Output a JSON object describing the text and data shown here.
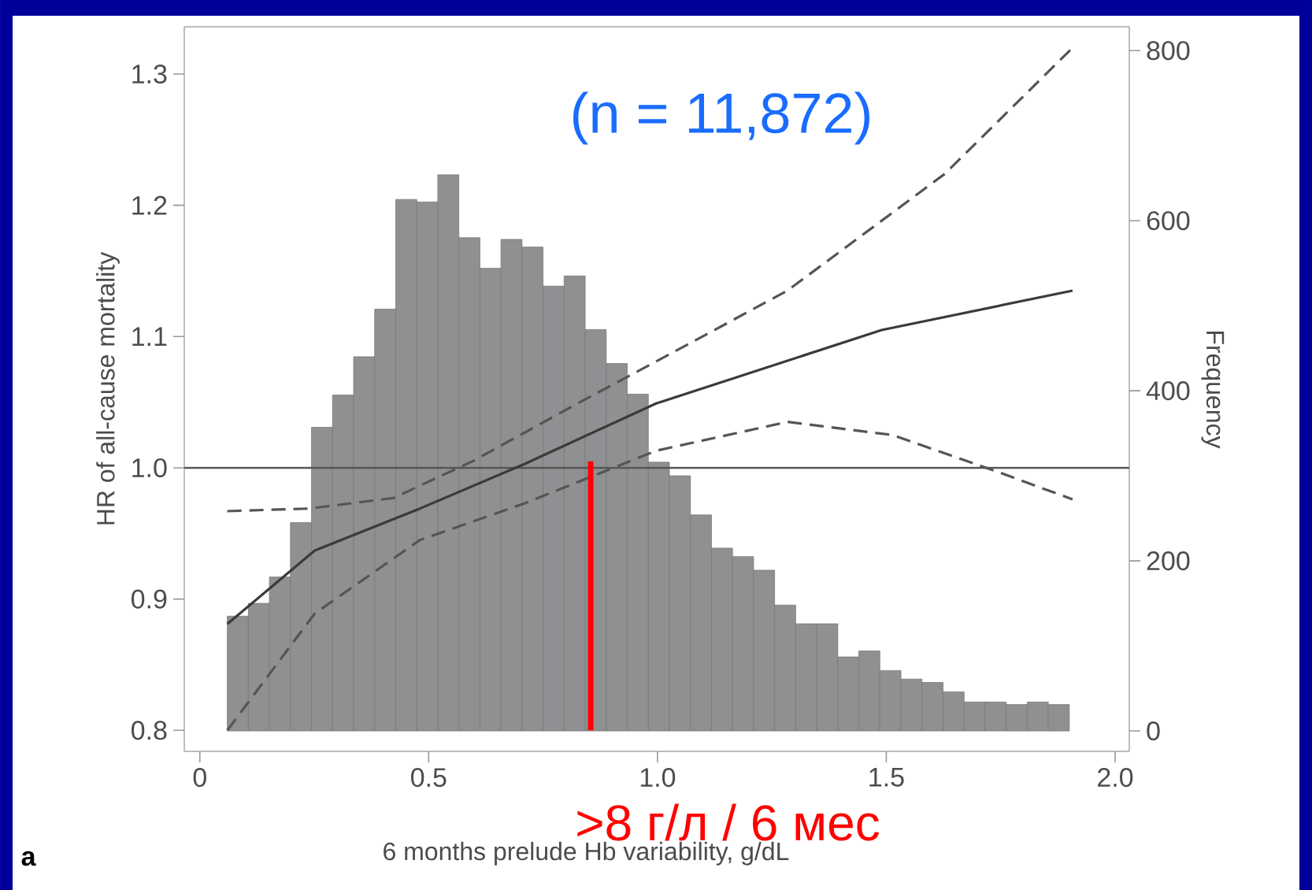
{
  "chart_data": {
    "type": "line",
    "xlabel": "6 months prelude Hb variability, g/dL",
    "ylabel": "HR of all-cause mortality",
    "y2label": "Frequency",
    "xlim": [
      -0.034,
      2.031
    ],
    "ylim": [
      0.784,
      1.336
    ],
    "y2lim": [
      -24,
      828
    ],
    "xticks": [
      0,
      0.5,
      {
        "value": 1,
        "label": "1.0"
      },
      1.5,
      {
        "value": 2,
        "label": "2.0"
      }
    ],
    "yticks": [
      0.8,
      0.9,
      {
        "value": 1,
        "label": "1.0"
      },
      1.1,
      1.2,
      1.3
    ],
    "y2ticks": [
      0,
      200,
      400,
      600,
      800
    ],
    "series": [
      {
        "type": "histogram",
        "axis": "y2",
        "color": "#8f9092",
        "bins": [
          0.06,
          0.106,
          0.152,
          0.198,
          0.244,
          0.29,
          0.336,
          0.382,
          0.428,
          0.474,
          0.52,
          0.566,
          0.612,
          0.658,
          0.704,
          0.75,
          0.796,
          0.842,
          0.888,
          0.934,
          0.98,
          1.026,
          1.072,
          1.118,
          1.164,
          1.21,
          1.256,
          1.302,
          1.348,
          1.394,
          1.44,
          1.486,
          1.532,
          1.578,
          1.624,
          1.67,
          1.716,
          1.762,
          1.808,
          1.854,
          1.9
        ],
        "values": [
          135,
          150,
          181,
          245,
          357,
          395,
          440,
          496,
          625,
          622,
          654,
          580,
          544,
          578,
          569,
          523,
          535,
          472,
          432,
          396,
          316,
          300,
          254,
          215,
          205,
          189,
          148,
          126,
          126,
          87,
          94,
          71,
          61,
          57,
          46,
          34,
          34,
          31,
          34,
          31
        ]
      },
      {
        "color": "#3a3a3a",
        "line_style": "solid",
        "x": [
          0.06,
          0.251,
          0.481,
          0.71,
          0.997,
          1.49,
          1.907
        ],
        "values": [
          0.881,
          0.937,
          0.969,
          1.003,
          1.049,
          1.105,
          1.135
        ]
      },
      {
        "color": "#555555",
        "line_style": "dashed",
        "x": [
          0.06,
          0.24,
          0.423,
          0.596,
          0.825,
          0.997,
          1.284,
          1.628,
          1.907
        ],
        "values": [
          0.967,
          0.969,
          0.977,
          1.005,
          1.049,
          1.081,
          1.135,
          1.224,
          1.32
        ]
      },
      {
        "color": "#555555",
        "line_style": "dashed",
        "x": [
          0.06,
          0.251,
          0.481,
          0.71,
          0.997,
          1.284,
          1.514,
          1.743,
          1.907
        ],
        "values": [
          0.8,
          0.889,
          0.945,
          0.973,
          1.013,
          1.035,
          1.025,
          0.997,
          0.976
        ]
      },
      {
        "color": "#ff0000",
        "line_style": "solid",
        "x": [
          0.854,
          0.854
        ],
        "values": [
          0.8,
          1.005
        ]
      }
    ],
    "ref_lines": [
      {
        "axis": "y",
        "value": 1,
        "color": "#555555"
      }
    ],
    "annotations": [
      "(n = 11,872)",
      ">8 г/л / 6 мес",
      "a"
    ]
  }
}
